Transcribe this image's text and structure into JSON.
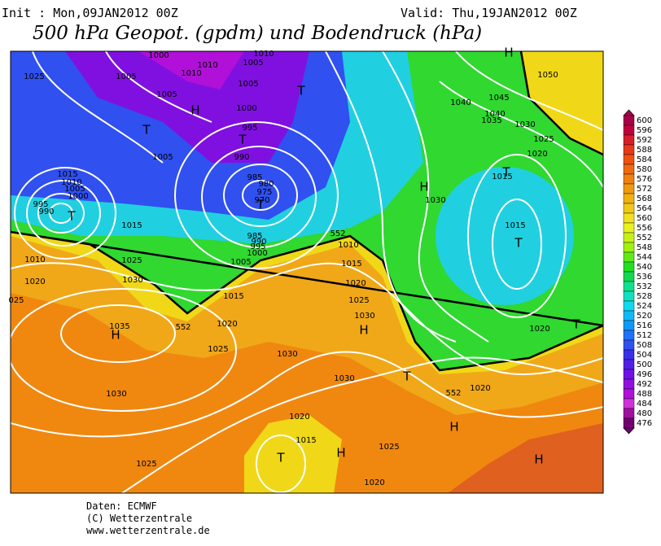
{
  "header": {
    "init": "Init : Mon,09JAN2012 00Z",
    "valid": "Valid: Thu,19JAN2012 00Z",
    "title": "500 hPa Geopot. (gpdm) und Bodendruck (hPa)"
  },
  "map": {
    "labels": [
      "1000",
      "1010",
      "1005",
      "1010",
      "1010",
      "1025",
      "1005",
      "1005",
      "H",
      "1005",
      "T",
      "1000",
      "T",
      "995",
      "T",
      "1005",
      "990",
      "1015",
      "1010",
      "1005",
      "1000",
      "995",
      "990",
      "T",
      "985",
      "980",
      "975",
      "970",
      "T",
      "1015",
      "985",
      "990",
      "995",
      "1000",
      "1010",
      "1025",
      "1005",
      "552",
      "1010",
      "1015",
      "1020",
      "1030",
      "025",
      "1015",
      "1020",
      "1025",
      "1030",
      "1035",
      "H",
      "552",
      "1020",
      "H",
      "1025",
      "1030",
      "1030",
      "T",
      "552",
      "1030",
      "1020",
      "1020",
      "H",
      "1015",
      "H",
      "T",
      "1025",
      "1025",
      "H",
      "1020",
      "H",
      "1050",
      "1045",
      "1040",
      "1040",
      "1035",
      "1030",
      "1025",
      "1020",
      "1015",
      "T",
      "H",
      "1030",
      "1015",
      "T",
      "1020",
      "T"
    ]
  },
  "legend": {
    "levels": [
      600,
      596,
      592,
      588,
      584,
      580,
      576,
      572,
      568,
      564,
      560,
      556,
      552,
      548,
      544,
      540,
      536,
      532,
      528,
      524,
      520,
      516,
      512,
      508,
      504,
      500,
      496,
      492,
      488,
      484,
      480,
      476
    ],
    "colors": [
      "#a80048",
      "#c0003a",
      "#d81e28",
      "#e83818",
      "#f05010",
      "#f06810",
      "#f08010",
      "#f09810",
      "#f0b010",
      "#f0c818",
      "#f0e020",
      "#e8f020",
      "#c8f018",
      "#a0f010",
      "#60e818",
      "#20e020",
      "#10d850",
      "#10e090",
      "#10e0c0",
      "#10d8f0",
      "#10b8f8",
      "#1098f8",
      "#2070f8",
      "#3050f0",
      "#3830e8",
      "#5020e8",
      "#7010e8",
      "#9010e0",
      "#b010d8",
      "#d030d8",
      "#a010a0",
      "#700070"
    ]
  },
  "footer": {
    "source": "Daten: ECMWF",
    "copyright": "(C) Wetterzentrale",
    "url": "www.wetterzentrale.de"
  }
}
